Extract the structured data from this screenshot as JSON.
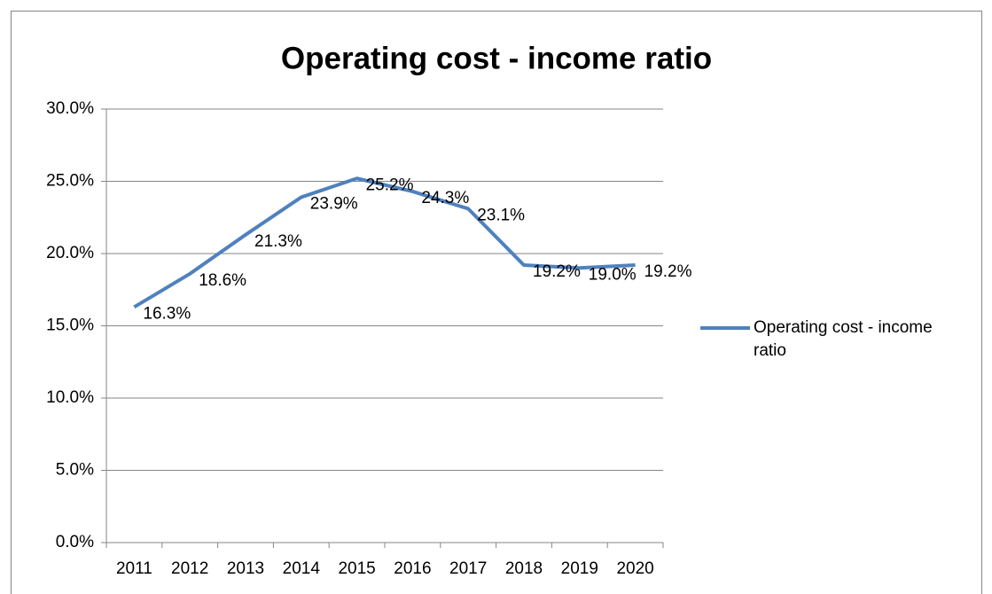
{
  "chart_data": {
    "type": "line",
    "title": "Operating cost - income ratio",
    "categories": [
      "2011",
      "2012",
      "2013",
      "2014",
      "2015",
      "2016",
      "2017",
      "2018",
      "2019",
      "2020"
    ],
    "series": [
      {
        "name": "Operating cost - income ratio",
        "color": "#4f81bd",
        "values": [
          16.3,
          18.6,
          21.3,
          23.9,
          25.2,
          24.3,
          23.1,
          19.2,
          19.0,
          19.2
        ],
        "value_labels": [
          "16.3%",
          "18.6%",
          "21.3%",
          "23.9%",
          "25.2%",
          "24.3%",
          "23.1%",
          "19.2%",
          "19.0%",
          "19.2%"
        ]
      }
    ],
    "ylim": [
      0,
      30
    ],
    "yticks": [
      {
        "value": 0,
        "label": "0.0%"
      },
      {
        "value": 5,
        "label": "5.0%"
      },
      {
        "value": 10,
        "label": "10.0%"
      },
      {
        "value": 15,
        "label": "15.0%"
      },
      {
        "value": 20,
        "label": "20.0%"
      },
      {
        "value": 25,
        "label": "25.0%"
      },
      {
        "value": 30,
        "label": "30.0%"
      }
    ],
    "grid": true,
    "legend": "right"
  }
}
